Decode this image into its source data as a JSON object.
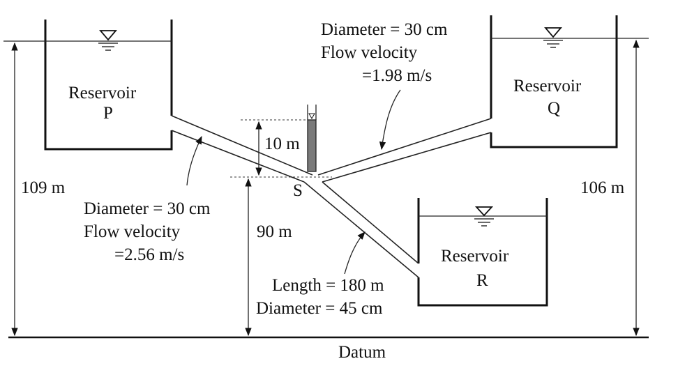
{
  "reservoirs": {
    "p": {
      "name": "Reservoir",
      "letter": "P",
      "elevation": "109 m"
    },
    "q": {
      "name": "Reservoir",
      "letter": "Q",
      "elevation": "106 m"
    },
    "r": {
      "name": "Reservoir",
      "letter": "R"
    }
  },
  "pipes": {
    "pq_pipe": {
      "diameter": "Diameter = 30 cm",
      "velocity_label": "Flow velocity",
      "velocity_value": "=1.98 m/s"
    },
    "p_pipe": {
      "diameter": "Diameter = 30 cm",
      "velocity_label": "Flow velocity",
      "velocity_value": "=2.56 m/s"
    },
    "r_pipe": {
      "length": "Length = 180 m",
      "diameter": "Diameter = 45 cm"
    }
  },
  "junction": {
    "name": "S",
    "piezometer_height": "10 m",
    "elevation": "90 m"
  },
  "datum": "Datum"
}
